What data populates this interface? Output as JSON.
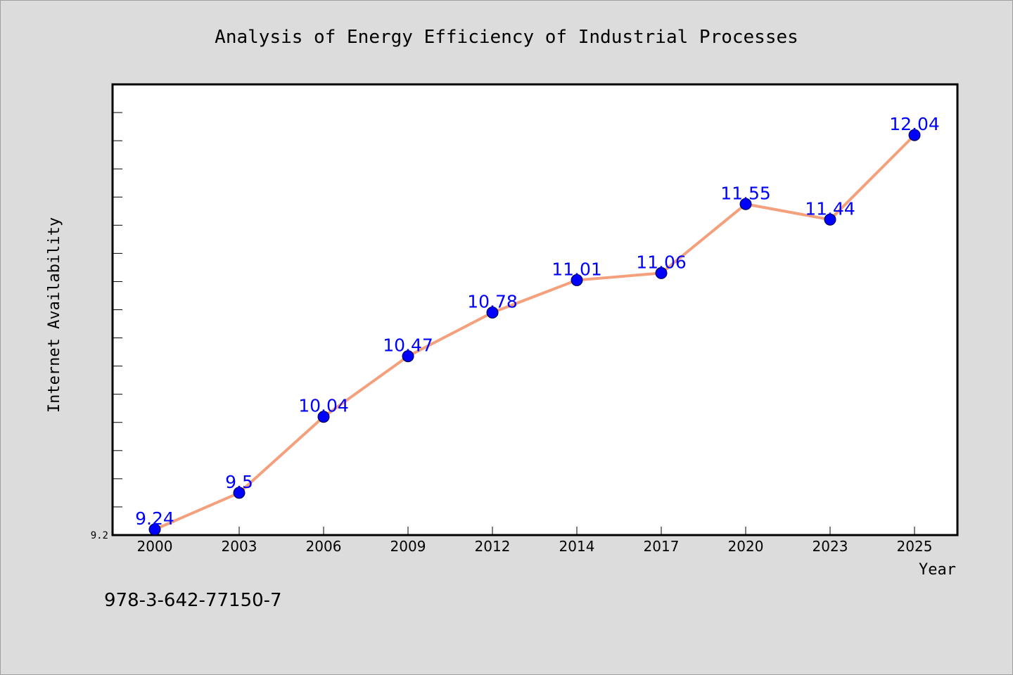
{
  "chart_data": {
    "type": "line",
    "title": "Analysis of Energy Efficiency of Industrial Processes",
    "xlabel": "Year",
    "ylabel": "Internet Availability",
    "categories": [
      "2000",
      "2003",
      "2006",
      "2009",
      "2012",
      "2014",
      "2017",
      "2020",
      "2023",
      "2025"
    ],
    "series": [
      {
        "values": [
          9.24,
          9.5,
          10.04,
          10.47,
          10.78,
          11.01,
          11.06,
          11.55,
          11.44,
          12.04
        ]
      }
    ],
    "data_labels": [
      "9.24",
      "9.5",
      "10.04",
      "10.47",
      "10.78",
      "11.01",
      "11.06",
      "11.55",
      "11.44",
      "12.04"
    ],
    "yticks_labeled": [
      "9.2"
    ],
    "ylim": [
      9.2,
      12.4
    ],
    "minor_tick_step": 0.2,
    "grid": false,
    "colors": {
      "line": "#f4a07c",
      "marker": "#0000ff",
      "data_label": "#0000ff",
      "background": "#dcdcdc",
      "plot_area": "#ffffff"
    }
  },
  "footer": {
    "isbn": "978-3-642-77150-7"
  }
}
